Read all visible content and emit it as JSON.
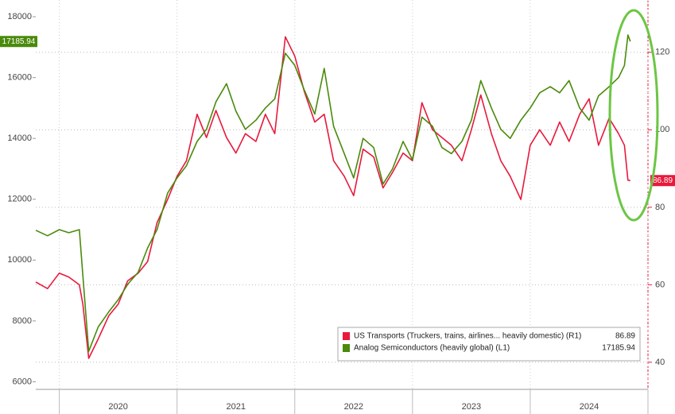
{
  "chart_data": {
    "type": "line",
    "x": [
      2019.8,
      2019.9,
      2020.0,
      2020.08,
      2020.17,
      2020.2,
      2020.25,
      2020.33,
      2020.42,
      2020.5,
      2020.58,
      2020.67,
      2020.75,
      2020.83,
      2020.92,
      2021.0,
      2021.08,
      2021.17,
      2021.25,
      2021.33,
      2021.42,
      2021.5,
      2021.58,
      2021.67,
      2021.75,
      2021.83,
      2021.92,
      2022.0,
      2022.08,
      2022.17,
      2022.25,
      2022.33,
      2022.42,
      2022.5,
      2022.58,
      2022.67,
      2022.75,
      2022.83,
      2022.92,
      2023.0,
      2023.08,
      2023.17,
      2023.25,
      2023.33,
      2023.42,
      2023.5,
      2023.58,
      2023.67,
      2023.75,
      2023.83,
      2023.92,
      2024.0,
      2024.08,
      2024.17,
      2024.25,
      2024.33,
      2024.42,
      2024.5,
      2024.58,
      2024.67,
      2024.75,
      2024.8,
      2024.83,
      2024.85
    ],
    "series": [
      {
        "name": "US Transports (Truckers, trains, airlines... heavily domestic) (R1)",
        "color": "#e8193c",
        "axis": "y2",
        "values": [
          60.7,
          59,
          63,
          62,
          60,
          55,
          41,
          46,
          52,
          55,
          61,
          63,
          66,
          76,
          82,
          88,
          92,
          104,
          98,
          105,
          98,
          94,
          99,
          97,
          104,
          99,
          124,
          119,
          110,
          102,
          104,
          92,
          88,
          83,
          95,
          93,
          85,
          89,
          94,
          92,
          107,
          100,
          98,
          96,
          92,
          100,
          109,
          99,
          92,
          88,
          82,
          96,
          100,
          96,
          102,
          97,
          104,
          108,
          96,
          103,
          99,
          96,
          87,
          86.89
        ]
      },
      {
        "name": "Analog Semiconductors (heavily global) (L1)",
        "color": "#4a8a0c",
        "values": [
          10980,
          10800,
          11000,
          10900,
          11000,
          9500,
          7000,
          7800,
          8300,
          8700,
          9200,
          9600,
          10400,
          11000,
          12200,
          12700,
          13100,
          13900,
          14300,
          15200,
          15800,
          14900,
          14300,
          14600,
          15000,
          15300,
          16800,
          16400,
          15600,
          14800,
          16300,
          14400,
          13500,
          12700,
          14000,
          13700,
          12500,
          13000,
          13900,
          13300,
          14700,
          14400,
          13700,
          13500,
          13900,
          14600,
          15900,
          15000,
          14300,
          14000,
          14600,
          15000,
          15500,
          15700,
          15500,
          15900,
          15000,
          14600,
          15400,
          15700,
          16000,
          16400,
          17400,
          17185.94
        ]
      }
    ],
    "xlim": [
      2019.8,
      2025.0
    ],
    "xticks": [
      {
        "value": 2020.5,
        "label": "2020"
      },
      {
        "value": 2021.5,
        "label": "2021"
      },
      {
        "value": 2022.5,
        "label": "2022"
      },
      {
        "value": 2023.5,
        "label": "2023"
      },
      {
        "value": 2024.5,
        "label": "2024"
      }
    ],
    "ylim": [
      5750,
      18550
    ],
    "yticks": [
      6000,
      8000,
      10000,
      12000,
      14000,
      16000,
      18000
    ],
    "y2lim": [
      33,
      133.5
    ],
    "y2ticks": [
      40,
      60,
      80,
      100,
      120
    ],
    "grid": true,
    "legend": "lower right"
  }
}
